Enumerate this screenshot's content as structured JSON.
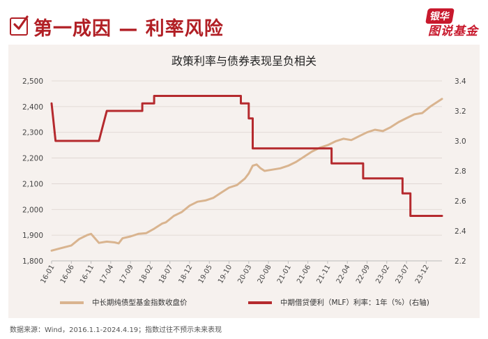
{
  "header": {
    "title": "第一成因 — 利率风险",
    "brand_top": "银华",
    "brand_bottom": "图说基金"
  },
  "colors": {
    "accent": "#b11f25",
    "bond": "#d9b48f",
    "mlf": "#b52a2e",
    "panel": "#f6f1ee"
  },
  "chart_data": {
    "type": "line",
    "title": "政策利率与债券表现呈负相关",
    "x_tick_labels": [
      "16-01",
      "16-06",
      "16-11",
      "17-04",
      "17-09",
      "18-02",
      "18-07",
      "18-12",
      "19-05",
      "19-10",
      "20-03",
      "20-08",
      "21-01",
      "21-06",
      "21-11",
      "22-04",
      "22-09",
      "23-02",
      "23-07",
      "23-12"
    ],
    "x_range": [
      "2016-01",
      "2024-04"
    ],
    "left_axis": {
      "ylim": [
        1800,
        2500
      ],
      "ticks": [
        "1,800",
        "1,900",
        "2,000",
        "2,100",
        "2,200",
        "2,300",
        "2,400",
        "2,500"
      ]
    },
    "right_axis": {
      "ylim": [
        2.2,
        3.4
      ],
      "ticks": [
        "2.2",
        "2.4",
        "2.6",
        "2.8",
        "3.0",
        "3.2",
        "3.4"
      ]
    },
    "grid": true,
    "legend_position": "bottom",
    "series": [
      {
        "name": "中长期纯债型基金指数收盘价",
        "axis": "left",
        "color": "#d9b48f",
        "points": [
          [
            "2016-01",
            1840
          ],
          [
            "2016-03",
            1848
          ],
          [
            "2016-06",
            1860
          ],
          [
            "2016-08",
            1885
          ],
          [
            "2016-10",
            1900
          ],
          [
            "2016-11",
            1905
          ],
          [
            "2016-12",
            1888
          ],
          [
            "2017-01",
            1870
          ],
          [
            "2017-03",
            1875
          ],
          [
            "2017-05",
            1872
          ],
          [
            "2017-06",
            1868
          ],
          [
            "2017-07",
            1888
          ],
          [
            "2017-09",
            1895
          ],
          [
            "2017-11",
            1905
          ],
          [
            "2018-01",
            1908
          ],
          [
            "2018-03",
            1925
          ],
          [
            "2018-05",
            1945
          ],
          [
            "2018-06",
            1950
          ],
          [
            "2018-08",
            1975
          ],
          [
            "2018-10",
            1990
          ],
          [
            "2018-12",
            2015
          ],
          [
            "2019-02",
            2030
          ],
          [
            "2019-04",
            2035
          ],
          [
            "2019-06",
            2045
          ],
          [
            "2019-08",
            2065
          ],
          [
            "2019-10",
            2085
          ],
          [
            "2019-12",
            2095
          ],
          [
            "2020-02",
            2120
          ],
          [
            "2020-03",
            2140
          ],
          [
            "2020-04",
            2170
          ],
          [
            "2020-05",
            2175
          ],
          [
            "2020-06",
            2160
          ],
          [
            "2020-07",
            2150
          ],
          [
            "2020-09",
            2155
          ],
          [
            "2020-11",
            2160
          ],
          [
            "2021-01",
            2170
          ],
          [
            "2021-03",
            2185
          ],
          [
            "2021-05",
            2205
          ],
          [
            "2021-07",
            2225
          ],
          [
            "2021-09",
            2240
          ],
          [
            "2021-11",
            2250
          ],
          [
            "2022-01",
            2265
          ],
          [
            "2022-03",
            2275
          ],
          [
            "2022-05",
            2270
          ],
          [
            "2022-07",
            2285
          ],
          [
            "2022-09",
            2300
          ],
          [
            "2022-11",
            2310
          ],
          [
            "2023-01",
            2305
          ],
          [
            "2023-03",
            2320
          ],
          [
            "2023-05",
            2340
          ],
          [
            "2023-07",
            2355
          ],
          [
            "2023-09",
            2370
          ],
          [
            "2023-11",
            2375
          ],
          [
            "2024-01",
            2400
          ],
          [
            "2024-03",
            2420
          ],
          [
            "2024-04",
            2430
          ]
        ]
      },
      {
        "name": "中期借贷便利（MLF）利率：1年（%）(右轴)",
        "axis": "right",
        "color": "#b52a2e",
        "points": [
          [
            "2016-01",
            3.25
          ],
          [
            "2016-02",
            3.0
          ],
          [
            "2017-01",
            3.0
          ],
          [
            "2017-02",
            3.1
          ],
          [
            "2017-03",
            3.2
          ],
          [
            "2017-12",
            3.2
          ],
          [
            "2017-12",
            3.25
          ],
          [
            "2018-03",
            3.25
          ],
          [
            "2018-03",
            3.3
          ],
          [
            "2020-01",
            3.3
          ],
          [
            "2020-01",
            3.25
          ],
          [
            "2020-03",
            3.25
          ],
          [
            "2020-03",
            3.15
          ],
          [
            "2020-04",
            3.15
          ],
          [
            "2020-04",
            2.95
          ],
          [
            "2021-12",
            2.95
          ],
          [
            "2021-12",
            2.85
          ],
          [
            "2022-08",
            2.85
          ],
          [
            "2022-08",
            2.75
          ],
          [
            "2023-06",
            2.75
          ],
          [
            "2023-06",
            2.65
          ],
          [
            "2023-08",
            2.65
          ],
          [
            "2023-08",
            2.5
          ],
          [
            "2024-04",
            2.5
          ]
        ]
      }
    ]
  },
  "footer": {
    "source": "数据来源：Wind，2016.1.1-2024.4.19；指数过往不预示未来表现"
  }
}
